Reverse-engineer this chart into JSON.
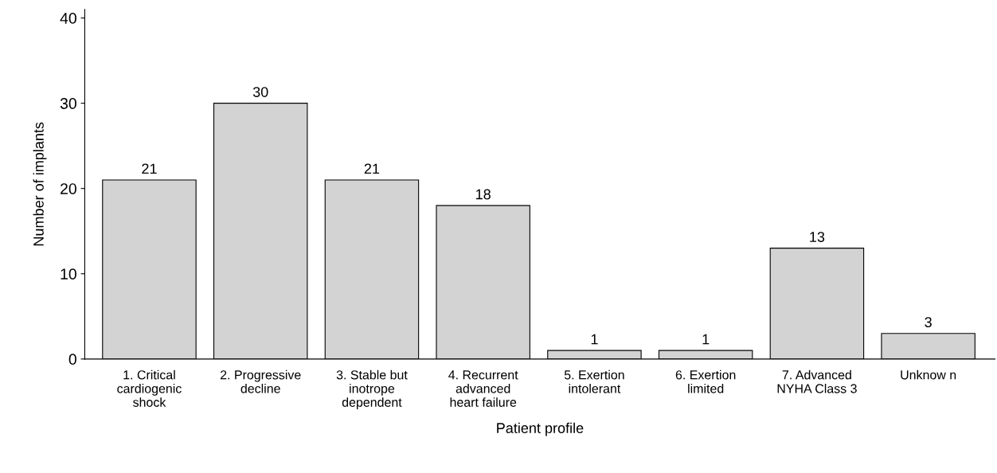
{
  "chart_data": {
    "type": "bar",
    "xlabel": "Patient profile",
    "ylabel": "Number of implants",
    "categories": [
      "1. Critical\ncardiogenic\nshock",
      "2. Progressive\ndecline",
      "3. Stable but\ninotrope\ndependent",
      "4. Recurrent\nadvanced\nheart failure",
      "5. Exertion\nintolerant",
      "6. Exertion\nlimited",
      "7. Advanced\nNYHA Class 3",
      "Unknow n"
    ],
    "values": [
      21,
      30,
      21,
      18,
      1,
      1,
      13,
      3
    ],
    "color": "#d3d3d3",
    "ylim": [
      0,
      41
    ],
    "yticks": [
      0,
      10,
      20,
      30,
      40
    ],
    "data_labels": true,
    "grid": false,
    "legend": false
  }
}
